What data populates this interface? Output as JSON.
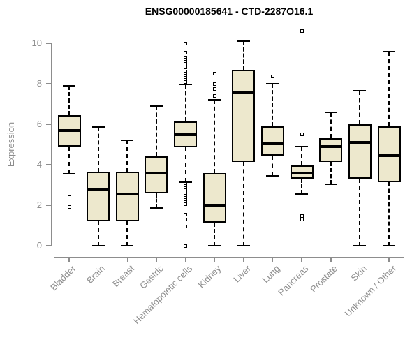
{
  "title": "ENSG00000185641 - CTD-2287O16.1",
  "chart_data": {
    "type": "boxplot",
    "title": "ENSG00000185641 - CTD-2287O16.1",
    "xlabel": "",
    "ylabel": "Expression",
    "ylim": [
      0,
      10
    ],
    "yticks": [
      0,
      2,
      4,
      6,
      8,
      10
    ],
    "grid": false,
    "legend": "none",
    "colors": {
      "box_fill": "#EDE8CD",
      "box_border": "#000000",
      "median": "#000000",
      "axis": "#8D8D8D",
      "title": "#000000"
    },
    "categories": [
      "Bladder",
      "Brain",
      "Breast",
      "Gastric",
      "Hematopoietic cells",
      "Kidney",
      "Liver",
      "Lung",
      "Pancreas",
      "Prostate",
      "Skin",
      "Unknown / Other"
    ],
    "series": [
      {
        "category": "Bladder",
        "whisker_low": 3.55,
        "q1": 4.9,
        "median": 5.7,
        "q3": 6.45,
        "whisker_high": 7.9,
        "outliers": [
          2.55,
          1.9
        ]
      },
      {
        "category": "Brain",
        "whisker_low": 0.0,
        "q1": 1.2,
        "median": 2.8,
        "q3": 3.65,
        "whisker_high": 5.85,
        "outliers": []
      },
      {
        "category": "Breast",
        "whisker_low": 0.0,
        "q1": 1.2,
        "median": 2.55,
        "q3": 3.65,
        "whisker_high": 5.2,
        "outliers": []
      },
      {
        "category": "Gastric",
        "whisker_low": 1.85,
        "q1": 2.6,
        "median": 3.6,
        "q3": 4.4,
        "whisker_high": 6.9,
        "outliers": []
      },
      {
        "category": "Hematopoietic cells",
        "whisker_low": 3.15,
        "q1": 4.85,
        "median": 5.5,
        "q3": 6.15,
        "whisker_high": 7.95,
        "outliers": [
          10.0,
          9.55,
          9.3,
          9.2,
          9.1,
          9.0,
          8.9,
          8.8,
          8.6,
          8.5,
          8.4,
          8.3,
          8.2,
          8.1,
          3.05,
          2.95,
          2.85,
          2.75,
          2.65,
          2.55,
          2.45,
          2.35,
          2.25,
          2.15,
          2.05,
          1.55,
          1.3,
          0.95,
          0.0
        ]
      },
      {
        "category": "Kidney",
        "whisker_low": 0.0,
        "q1": 1.15,
        "median": 2.0,
        "q3": 3.6,
        "whisker_high": 7.2,
        "outliers": [
          8.5,
          8.0,
          7.75,
          7.4
        ]
      },
      {
        "category": "Liver",
        "whisker_low": 0.0,
        "q1": 4.15,
        "median": 7.6,
        "q3": 8.7,
        "whisker_high": 10.1,
        "outliers": []
      },
      {
        "category": "Lung",
        "whisker_low": 3.45,
        "q1": 4.45,
        "median": 5.05,
        "q3": 5.9,
        "whisker_high": 8.0,
        "outliers": [
          8.35
        ]
      },
      {
        "category": "Pancreas",
        "whisker_low": 2.55,
        "q1": 3.3,
        "median": 3.6,
        "q3": 3.95,
        "whisker_high": 4.9,
        "outliers": [
          10.6,
          5.5,
          1.45,
          1.3
        ]
      },
      {
        "category": "Prostate",
        "whisker_low": 3.05,
        "q1": 4.15,
        "median": 4.9,
        "q3": 5.3,
        "whisker_high": 6.6,
        "outliers": []
      },
      {
        "category": "Skin",
        "whisker_low": 0.0,
        "q1": 3.3,
        "median": 5.1,
        "q3": 6.0,
        "whisker_high": 7.65,
        "outliers": []
      },
      {
        "category": "Unknown / Other",
        "whisker_low": 0.0,
        "q1": 3.15,
        "median": 4.45,
        "q3": 5.9,
        "whisker_high": 9.6,
        "outliers": []
      }
    ]
  }
}
